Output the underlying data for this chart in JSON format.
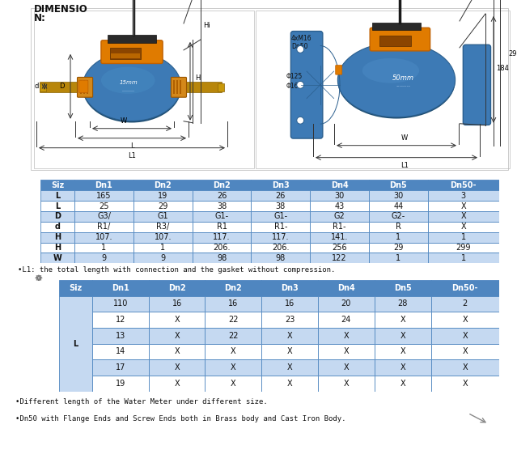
{
  "title_line1": "DIMENSIO",
  "title_line2": "N:",
  "table1_headers": [
    "Siz",
    "Dn1",
    "Dn2",
    "Dn2",
    "Dn3",
    "Dn4",
    "Dn5",
    "Dn50-"
  ],
  "table1_rows": [
    [
      "L",
      "165",
      "19",
      "26",
      "26",
      "30",
      "30",
      "3"
    ],
    [
      "L",
      "25",
      "29",
      "38",
      "38",
      "43",
      "44",
      "X"
    ],
    [
      "D",
      "G3/",
      "G1",
      "G1-",
      "G1-",
      "G2",
      "G2-",
      "X"
    ],
    [
      "d",
      "R1/",
      "R3/",
      "R1",
      "R1-",
      "R1-",
      "R",
      "X"
    ],
    [
      "H",
      "107.",
      "107.",
      "117.",
      "117.",
      "141.",
      "1",
      "1"
    ],
    [
      "H",
      "1",
      "1",
      "206.",
      "206.",
      "256",
      "29",
      "299"
    ],
    [
      "W",
      "9",
      "9",
      "98",
      "98",
      "122",
      "1",
      "1"
    ]
  ],
  "note1": "•L1: the total length with connection and the gasket without compression.",
  "table2_headers": [
    "Siz",
    "Dn1",
    "Dn2",
    "Dn2",
    "Dn3",
    "Dn4",
    "Dn5",
    "Dn50-"
  ],
  "table2_col0": "L",
  "table2_sub_col": [
    "110",
    "12",
    "13",
    "14",
    "17",
    "19"
  ],
  "table2_data": [
    [
      "16",
      "16",
      "16",
      "20",
      "28",
      "2"
    ],
    [
      "X",
      "22",
      "23",
      "24",
      "X",
      "X"
    ],
    [
      "X",
      "22",
      "X",
      "X",
      "X",
      "X"
    ],
    [
      "X",
      "X",
      "X",
      "X",
      "X",
      "X"
    ],
    [
      "X",
      "X",
      "X",
      "X",
      "X",
      "X"
    ],
    [
      "X",
      "X",
      "X",
      "X",
      "X",
      "X"
    ]
  ],
  "note2a": "•Different length of the Water Meter under different size.",
  "note2b": "•Dn50 with Flange Ends and Screw Ends both in Brass body and Cast Iron Body.",
  "header_bg": "#4f86c0",
  "header_border": "#3a6fa8",
  "row_bg_blue": "#c5d9f1",
  "row_bg_white": "#ffffff",
  "border_color": "#4f86c0",
  "bg_color": "#ffffff",
  "blue_body": "#3d7ab5",
  "blue_dark": "#2b5f8e",
  "orange": "#e07b00",
  "orange_dark": "#c06000",
  "orange_pipe": "#d4881a",
  "pipe_yellow": "#c8900a",
  "antenna_color": "#1a1a1a",
  "dim_line_color": "#404040",
  "text_color": "#000000"
}
